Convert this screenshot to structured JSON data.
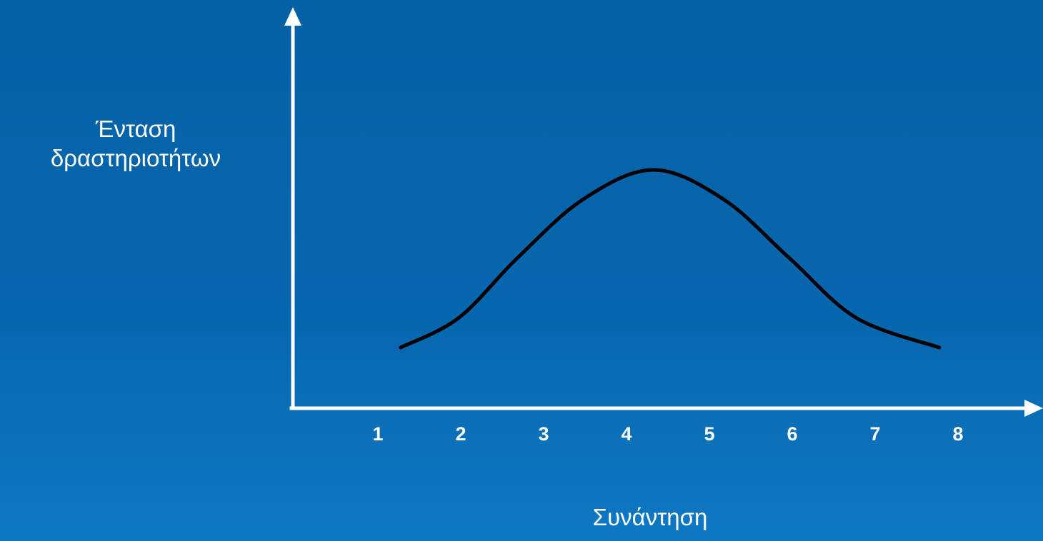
{
  "colors": {
    "background": "#0767ae",
    "axis": "#ffffff",
    "curve": "#000000",
    "text": "#ffffff"
  },
  "chart_data": {
    "type": "line",
    "title": "",
    "ylabel_lines": [
      "Ένταση",
      "δραστηριοτήτων"
    ],
    "xlabel": "Συνάντηση",
    "x_ticks": [
      1,
      2,
      3,
      4,
      5,
      6,
      7,
      8
    ],
    "y_ticks_visible": false,
    "grid": false,
    "legend": "none",
    "series": [
      {
        "x": [
          1.3,
          2.0,
          2.7,
          3.5,
          4.35,
          5.2,
          6.0,
          6.8,
          7.8
        ],
        "y": [
          0.1,
          0.25,
          0.55,
          0.85,
          1.0,
          0.85,
          0.55,
          0.25,
          0.1
        ]
      }
    ],
    "xlim": [
      0,
      8.75
    ],
    "ylim": [
      0,
      1.3
    ]
  }
}
